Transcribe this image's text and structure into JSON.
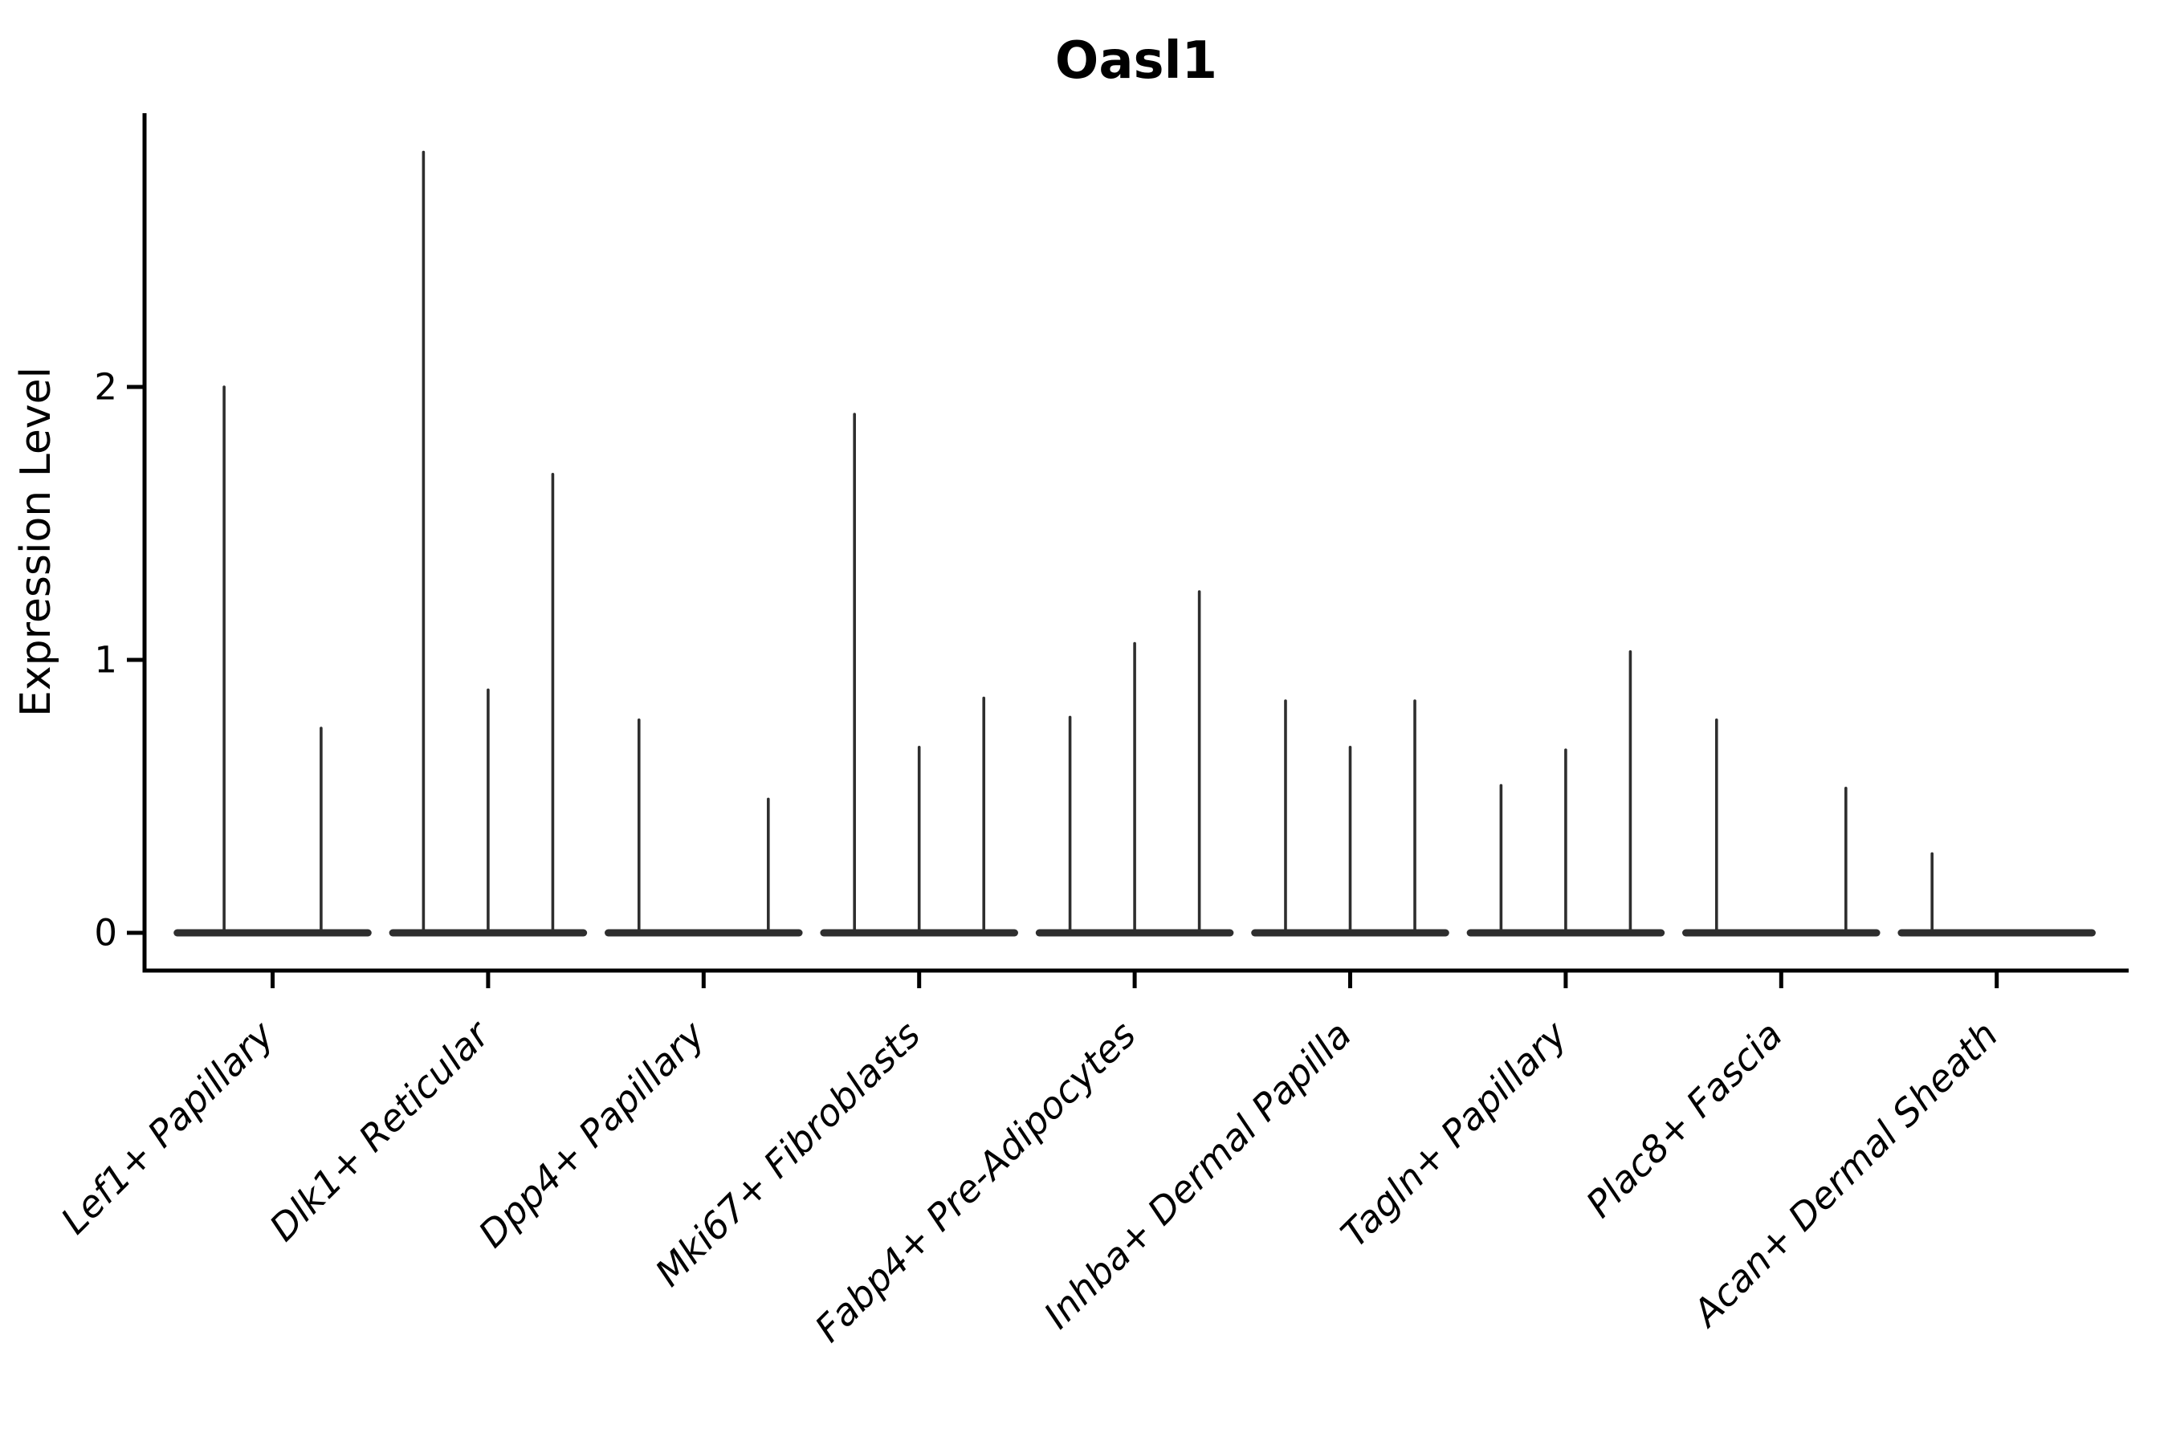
{
  "figure": {
    "title": "Oasl1",
    "ylabel": "Expression Level"
  },
  "chart_data": {
    "type": "violin",
    "title": "Oasl1",
    "xlabel": "",
    "ylabel": "Expression Level",
    "yticks": [
      0,
      1,
      2
    ],
    "ylim": [
      -0.14,
      3.0
    ],
    "grid": false,
    "legend": "none",
    "style": "collapsed violins: thin vertical spike at each violin maximum with a flat wide base at 0; dodged sub-violins per category; only left and bottom spines shown",
    "categories": [
      {
        "label": "Lef1+ Papillary",
        "violin_maxima": [
          2.0,
          0.75
        ]
      },
      {
        "label": "Dlk1+ Reticular",
        "violin_maxima": [
          2.86,
          0.89,
          1.68
        ]
      },
      {
        "label": "Dpp4+ Papillary",
        "violin_maxima": [
          0.78,
          0,
          0.49
        ]
      },
      {
        "label": "Mki67+ Fibroblasts",
        "violin_maxima": [
          1.9,
          0.68,
          0.86
        ]
      },
      {
        "label": "Fabp4+ Pre-Adipocytes",
        "violin_maxima": [
          0.79,
          1.06,
          1.25
        ]
      },
      {
        "label": "Inhba+ Dermal Papilla",
        "violin_maxima": [
          0.85,
          0.68,
          0.85
        ]
      },
      {
        "label": "Tagln+ Papillary",
        "violin_maxima": [
          0.54,
          0.67,
          1.03
        ]
      },
      {
        "label": "Plac8+ Fascia",
        "violin_maxima": [
          0.78,
          0,
          0.53
        ]
      },
      {
        "label": "Acan+ Dermal Sheath",
        "violin_maxima": [
          0.29,
          0,
          0
        ]
      }
    ],
    "colors": {
      "violin_stroke": "#2e2e2e",
      "axis": "#000000",
      "text": "#000000",
      "background": "#ffffff"
    }
  }
}
